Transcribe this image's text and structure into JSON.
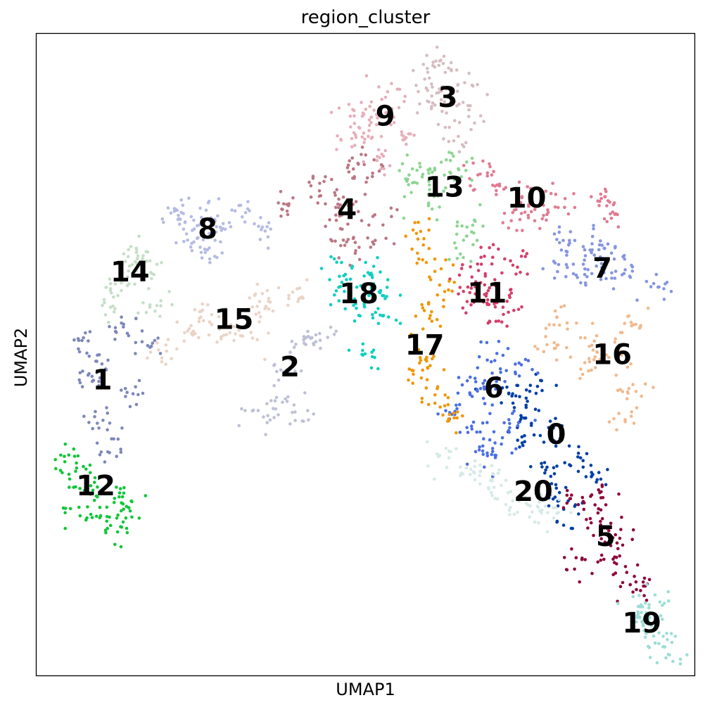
{
  "chart_data": {
    "type": "scatter",
    "title": "region_cluster",
    "xlabel": "UMAP1",
    "ylabel": "UMAP2",
    "xlim": [
      0,
      100
    ],
    "ylim": [
      0,
      100
    ],
    "grid": false,
    "ticks": false,
    "legend": "on data",
    "clusters": [
      {
        "name": "0",
        "color": "#023fa5",
        "blob": [
          [
            73.5,
            37.3
          ],
          [
            77.5,
            32
          ],
          [
            79,
            28
          ],
          [
            81,
            25
          ],
          [
            86,
            31
          ],
          [
            82,
            34
          ],
          [
            78,
            38
          ],
          [
            74,
            41
          ],
          [
            72,
            44
          ],
          [
            76,
            45
          ]
        ]
      },
      {
        "name": "1",
        "color": "#7d87b9",
        "blob": [
          [
            8.5,
            45.8
          ],
          [
            7,
            52
          ],
          [
            10,
            40
          ],
          [
            11,
            35
          ],
          [
            15,
            44
          ],
          [
            17,
            52
          ],
          [
            13,
            54
          ],
          [
            9,
            48
          ]
        ]
      },
      {
        "name": "2",
        "color": "#bec1d4",
        "blob": [
          [
            38,
            48
          ],
          [
            36,
            43
          ],
          [
            34,
            40
          ],
          [
            39,
            41
          ],
          [
            41,
            52
          ],
          [
            44,
            53
          ]
        ]
      },
      {
        "name": "3",
        "color": "#d6bcc0",
        "blob": [
          [
            61.5,
            89
          ],
          [
            59,
            94
          ],
          [
            62,
            96
          ],
          [
            65,
            92
          ],
          [
            66,
            88
          ],
          [
            63,
            84
          ],
          [
            60,
            90
          ]
        ]
      },
      {
        "name": "4",
        "color": "#bb7784",
        "blob": [
          [
            47,
            72
          ],
          [
            45,
            74
          ],
          [
            43,
            76
          ],
          [
            48,
            80
          ],
          [
            51,
            78
          ],
          [
            52,
            70
          ],
          [
            49,
            66
          ],
          [
            46,
            69
          ],
          [
            38,
            73
          ]
        ]
      },
      {
        "name": "5",
        "color": "#8e063b",
        "blob": [
          [
            85,
            24
          ],
          [
            82,
            27
          ],
          [
            86,
            28
          ],
          [
            88,
            19
          ],
          [
            90,
            16
          ],
          [
            82,
            17
          ],
          [
            88,
            22
          ],
          [
            91,
            14
          ]
        ]
      },
      {
        "name": "6",
        "color": "#4a6fe3",
        "blob": [
          [
            69,
            44.5
          ],
          [
            66,
            46
          ],
          [
            64,
            42
          ],
          [
            67,
            38
          ],
          [
            70,
            36
          ],
          [
            72,
            40
          ],
          [
            70,
            50
          ],
          [
            73,
            47
          ],
          [
            68,
            34
          ]
        ]
      },
      {
        "name": "7",
        "color": "#8595e1",
        "blob": [
          [
            84,
            65.6
          ],
          [
            80,
            68
          ],
          [
            83,
            62
          ],
          [
            87,
            64
          ],
          [
            90,
            63
          ],
          [
            94,
            61
          ],
          [
            80,
            64
          ],
          [
            86,
            67
          ]
        ]
      },
      {
        "name": "8",
        "color": "#b5bbe3",
        "blob": [
          [
            25,
            70.7
          ],
          [
            21,
            71
          ],
          [
            24,
            68
          ],
          [
            28,
            69
          ],
          [
            31,
            73
          ],
          [
            34,
            70
          ],
          [
            26,
            66
          ],
          [
            22,
            72
          ]
        ]
      },
      {
        "name": "9",
        "color": "#e6afb9",
        "blob": [
          [
            52,
            87.2
          ],
          [
            48,
            89
          ],
          [
            50,
            84
          ],
          [
            55,
            90
          ],
          [
            52,
            80
          ],
          [
            56,
            85
          ],
          [
            48,
            84
          ]
        ]
      },
      {
        "name": "10",
        "color": "#e07b91",
        "blob": [
          [
            74,
            74.6
          ],
          [
            70,
            76
          ],
          [
            68,
            78
          ],
          [
            76,
            72
          ],
          [
            80,
            74
          ],
          [
            86,
            74
          ],
          [
            87,
            72
          ],
          [
            73,
            71
          ]
        ]
      },
      {
        "name": "11",
        "color": "#d33f6a",
        "blob": [
          [
            69,
            59.9
          ],
          [
            66,
            62
          ],
          [
            70,
            56
          ],
          [
            72,
            58
          ],
          [
            69,
            65
          ],
          [
            73,
            64
          ],
          [
            66,
            59
          ]
        ]
      },
      {
        "name": "12",
        "color": "#11c638",
        "blob": [
          [
            8,
            30
          ],
          [
            5,
            34
          ],
          [
            7,
            26
          ],
          [
            10,
            25
          ],
          [
            12,
            28
          ],
          [
            13,
            23
          ],
          [
            14,
            26
          ],
          [
            6,
            32
          ]
        ]
      },
      {
        "name": "13",
        "color": "#8dd593",
        "blob": [
          [
            62,
            76.6
          ],
          [
            59,
            79
          ],
          [
            60,
            74
          ],
          [
            64,
            80
          ],
          [
            66,
            70
          ],
          [
            65,
            68
          ],
          [
            57,
            77
          ]
        ]
      },
      {
        "name": "14",
        "color": "#c6dec7",
        "blob": [
          [
            14,
            64
          ],
          [
            12,
            61
          ],
          [
            16,
            66
          ],
          [
            18,
            58
          ],
          [
            11,
            57
          ],
          [
            17,
            63
          ]
        ]
      },
      {
        "name": "15",
        "color": "#ead3c6",
        "blob": [
          [
            28,
            55
          ],
          [
            23,
            53
          ],
          [
            19,
            50
          ],
          [
            34,
            57
          ],
          [
            35,
            59
          ],
          [
            39,
            60
          ],
          [
            32,
            53
          ],
          [
            25,
            56
          ]
        ]
      },
      {
        "name": "16",
        "color": "#f0b98d",
        "blob": [
          [
            88,
            50
          ],
          [
            85,
            52
          ],
          [
            80,
            56
          ],
          [
            90,
            45
          ],
          [
            89,
            40
          ],
          [
            84,
            48
          ],
          [
            91,
            54
          ],
          [
            78,
            51
          ]
        ]
      },
      {
        "name": "17",
        "color": "#ef9708",
        "blob": [
          [
            60,
            49.8
          ],
          [
            59,
            56
          ],
          [
            58,
            47
          ],
          [
            61,
            43
          ],
          [
            63,
            41
          ],
          [
            60,
            64
          ],
          [
            58,
            69
          ],
          [
            61,
            60
          ]
        ]
      },
      {
        "name": "18",
        "color": "#0fcfc0",
        "blob": [
          [
            47,
            60
          ],
          [
            49,
            58
          ],
          [
            51,
            62
          ],
          [
            52,
            56
          ],
          [
            50,
            51
          ],
          [
            53,
            60
          ],
          [
            46,
            63
          ]
        ]
      },
      {
        "name": "19",
        "color": "#9cded6",
        "blob": [
          [
            93,
            8
          ],
          [
            91,
            10
          ],
          [
            95,
            5
          ],
          [
            96,
            4
          ],
          [
            94,
            12
          ],
          [
            92,
            9
          ]
        ]
      },
      {
        "name": "20",
        "color": "#d5eae7",
        "blob": [
          [
            70,
            29
          ],
          [
            66,
            32
          ],
          [
            68,
            31
          ],
          [
            74,
            26
          ],
          [
            78,
            25
          ],
          [
            62,
            34
          ],
          [
            76,
            27
          ]
        ]
      }
    ],
    "labels": [
      {
        "text": "0",
        "x": 79,
        "y": 37.3
      },
      {
        "text": "1",
        "x": 10,
        "y": 45.8
      },
      {
        "text": "2",
        "x": 38.5,
        "y": 47.8
      },
      {
        "text": "3",
        "x": 62.5,
        "y": 89.8
      },
      {
        "text": "4",
        "x": 47.2,
        "y": 72.3
      },
      {
        "text": "5",
        "x": 86.5,
        "y": 21.4
      },
      {
        "text": "6",
        "x": 69.5,
        "y": 44.5
      },
      {
        "text": "7",
        "x": 86,
        "y": 63.2
      },
      {
        "text": "8",
        "x": 26,
        "y": 69.3
      },
      {
        "text": "9",
        "x": 53,
        "y": 86.9
      },
      {
        "text": "10",
        "x": 74.5,
        "y": 74.1
      },
      {
        "text": "11",
        "x": 68.5,
        "y": 59.3
      },
      {
        "text": "12",
        "x": 9,
        "y": 29.3
      },
      {
        "text": "13",
        "x": 62,
        "y": 75.8
      },
      {
        "text": "14",
        "x": 14.2,
        "y": 62.6
      },
      {
        "text": "15",
        "x": 30,
        "y": 55.2
      },
      {
        "text": "16",
        "x": 87.5,
        "y": 49.7
      },
      {
        "text": "17",
        "x": 59,
        "y": 51.2
      },
      {
        "text": "18",
        "x": 49,
        "y": 59.2
      },
      {
        "text": "19",
        "x": 92,
        "y": 7.9
      },
      {
        "text": "20",
        "x": 75.5,
        "y": 28.4
      }
    ]
  }
}
